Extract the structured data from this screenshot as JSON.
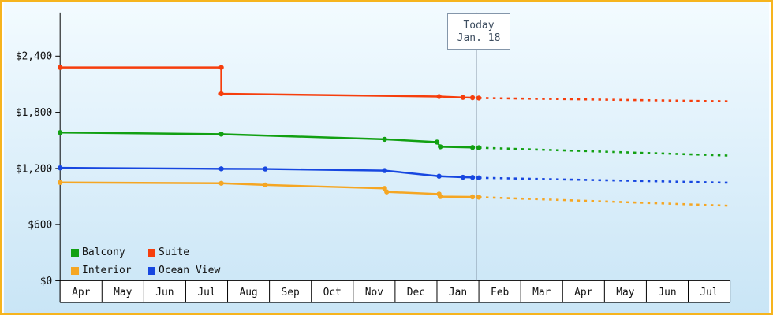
{
  "page": {
    "frame_color": "#f6b41e",
    "bg_top": "#f3fbff",
    "bg_bottom": "#c9e5f6"
  },
  "today_flag": {
    "line1": "Today",
    "line2": "Jan. 18"
  },
  "legend": {
    "items": [
      {
        "label": "Balcony",
        "color": "#12a012"
      },
      {
        "label": "Suite",
        "color": "#f63e0c"
      },
      {
        "label": "Interior",
        "color": "#f5a623"
      },
      {
        "label": "Ocean View",
        "color": "#1747e0"
      }
    ]
  },
  "chart_data": {
    "type": "line",
    "title": "",
    "xlabel": "",
    "ylabel": "",
    "grid": false,
    "legend_position": "bottom-left-inside",
    "months": [
      "Apr",
      "May",
      "Jun",
      "Jul",
      "Aug",
      "Sep",
      "Oct",
      "Nov",
      "Dec",
      "Jan",
      "Feb",
      "Mar",
      "Apr",
      "May",
      "Jun",
      "Jul"
    ],
    "y_ticks": [
      {
        "label": "$0",
        "value": 0
      },
      {
        "label": "$600",
        "value": 600
      },
      {
        "label": "$1,200",
        "value": 1200
      },
      {
        "label": "$1,800",
        "value": 1800
      },
      {
        "label": "$2,400",
        "value": 2400
      }
    ],
    "ylim": [
      0,
      2867
    ],
    "today_x": 9.94,
    "series": [
      {
        "name": "Interior",
        "color": "#f5a623",
        "solid": [
          [
            0,
            1049
          ],
          [
            3.85,
            1041
          ],
          [
            4.9,
            1023
          ],
          [
            7.75,
            986
          ],
          [
            7.8,
            949
          ],
          [
            9.05,
            926
          ],
          [
            9.08,
            899
          ],
          [
            9.85,
            896
          ]
        ],
        "forecast": [
          [
            10,
            893
          ],
          [
            16,
            801
          ]
        ]
      },
      {
        "name": "Ocean View",
        "color": "#1747e0",
        "solid": [
          [
            0,
            1206
          ],
          [
            3.85,
            1196
          ],
          [
            4.9,
            1194
          ],
          [
            7.75,
            1177
          ],
          [
            9.05,
            1117
          ],
          [
            9.62,
            1106
          ],
          [
            9.85,
            1104
          ]
        ],
        "forecast": [
          [
            10,
            1100
          ],
          [
            16,
            1047
          ]
        ]
      },
      {
        "name": "Balcony",
        "color": "#12a012",
        "solid": [
          [
            0,
            1584
          ],
          [
            3.85,
            1566
          ],
          [
            7.75,
            1511
          ],
          [
            9.0,
            1481
          ],
          [
            9.08,
            1431
          ],
          [
            9.85,
            1424
          ]
        ],
        "forecast": [
          [
            10,
            1421
          ],
          [
            16,
            1337
          ]
        ]
      },
      {
        "name": "Suite",
        "color": "#f63e0c",
        "solid": [
          [
            0,
            2279
          ],
          [
            3.85,
            2279
          ],
          [
            3.85,
            1999
          ],
          [
            9.05,
            1969
          ],
          [
            9.62,
            1959
          ],
          [
            9.85,
            1956
          ]
        ],
        "forecast": [
          [
            10,
            1953
          ],
          [
            16,
            1917
          ]
        ]
      }
    ]
  }
}
